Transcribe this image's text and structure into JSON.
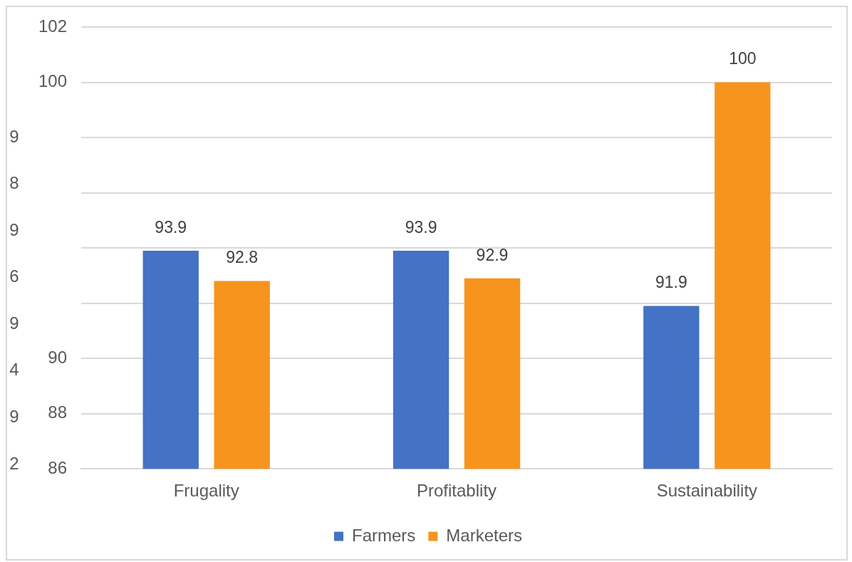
{
  "chart_data": {
    "type": "bar",
    "categories": [
      "Frugality",
      "Profitablity",
      "Sustainability"
    ],
    "series": [
      {
        "name": "Farmers",
        "color": "#4472c4",
        "values": [
          93.9,
          93.9,
          91.9
        ]
      },
      {
        "name": "Marketers",
        "color": "#f7941d",
        "values": [
          92.8,
          92.9,
          100
        ]
      }
    ],
    "ylim": [
      86,
      102
    ],
    "yticks": [
      86,
      88,
      90,
      {
        "value": 92,
        "label": null
      },
      {
        "value": 94,
        "label": null
      },
      {
        "value": 96,
        "label": null
      },
      {
        "value": 98,
        "label": null
      },
      100,
      102
    ],
    "annotations": [
      "9",
      "8",
      "9",
      "6",
      "9",
      "4",
      "9",
      "2"
    ],
    "grid": "y",
    "legend": "bottom",
    "data_labels": true
  }
}
